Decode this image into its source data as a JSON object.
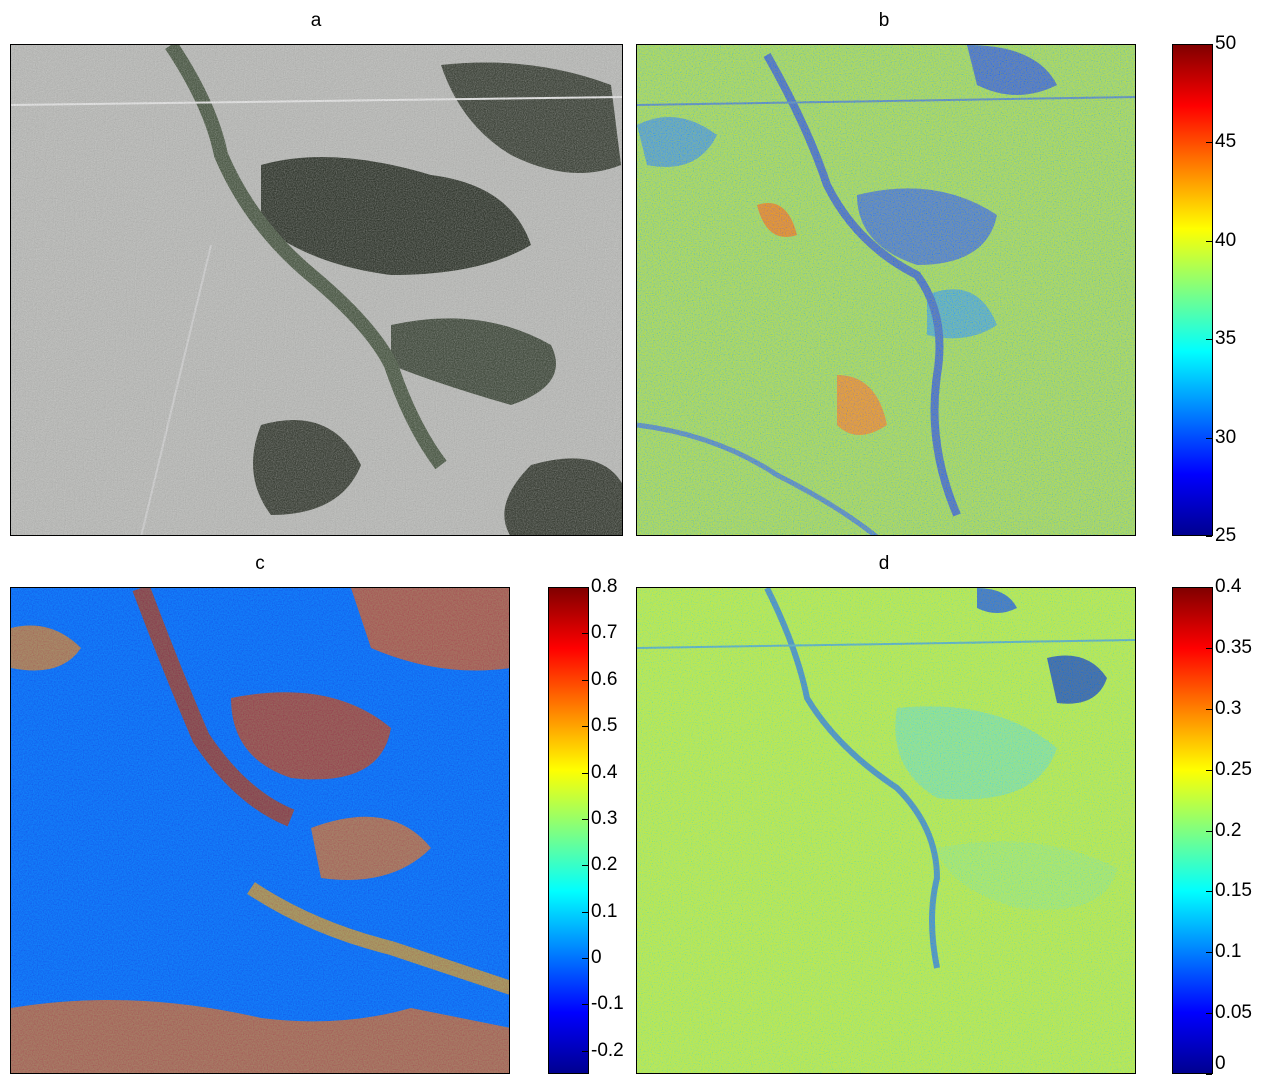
{
  "panels": [
    {
      "label": "a",
      "kind": "true-color satellite image"
    },
    {
      "label": "b",
      "kind": "heatmap"
    },
    {
      "label": "c",
      "kind": "heatmap"
    },
    {
      "label": "d",
      "kind": "heatmap"
    }
  ],
  "chart_data": [
    {
      "type": "heatmap",
      "title": "a",
      "colormap": "true-color",
      "colorbar": null
    },
    {
      "type": "heatmap",
      "title": "b",
      "colormap": "jet",
      "colorbar": {
        "range": [
          25,
          50
        ],
        "ticks": [
          "25",
          "30",
          "35",
          "40",
          "45",
          "50"
        ]
      }
    },
    {
      "type": "heatmap",
      "title": "c",
      "colormap": "jet",
      "colorbar": {
        "range": [
          -0.25,
          0.8
        ],
        "ticks": [
          "-0.2",
          "-0.1",
          "0",
          "0.1",
          "0.2",
          "0.3",
          "0.4",
          "0.5",
          "0.6",
          "0.7",
          "0.8"
        ]
      }
    },
    {
      "type": "heatmap",
      "title": "d",
      "colormap": "jet",
      "colorbar": {
        "range": [
          0,
          0.4
        ],
        "ticks": [
          "0",
          "0.05",
          "0.1",
          "0.15",
          "0.2",
          "0.25",
          "0.3",
          "0.35",
          "0.4"
        ]
      }
    }
  ],
  "colors": {
    "jet": [
      "#00008f",
      "#0000ff",
      "#0080ff",
      "#00ffff",
      "#80ff80",
      "#ffff00",
      "#ff8000",
      "#ff0000",
      "#800000"
    ]
  }
}
